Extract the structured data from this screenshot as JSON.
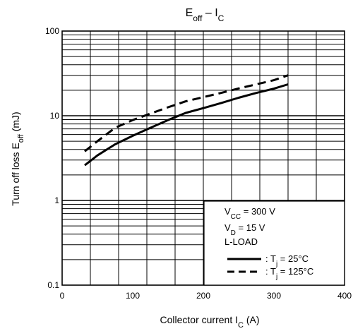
{
  "chart_data": {
    "type": "line",
    "title": {
      "main": "E",
      "sub": "off",
      "rest": " – I",
      "sub2": "C"
    },
    "xlabel": {
      "main": "Collector current   I",
      "sub": "C",
      "unit": "   (A)"
    },
    "ylabel": {
      "main": "Turn off loss   E",
      "sub": "off",
      "unit": "   (mJ)"
    },
    "xlim": [
      0,
      400
    ],
    "ylim": [
      0.1,
      100
    ],
    "yscale": "log",
    "grid": true,
    "xticks": [
      {
        "value": 0,
        "label": "0"
      },
      {
        "value": 100,
        "label": "100"
      },
      {
        "value": 200,
        "label": "200"
      },
      {
        "value": 300,
        "label": "300"
      },
      {
        "value": 400,
        "label": "400"
      }
    ],
    "yticks": [
      {
        "value": 0.1,
        "label": "0.1"
      },
      {
        "value": 1,
        "label": "1"
      },
      {
        "value": 10,
        "label": "10"
      },
      {
        "value": 100,
        "label": "100"
      }
    ],
    "series": [
      {
        "name": ": Tj = 25°C",
        "style": "solid",
        "color": "#000000",
        "x": [
          32,
          50,
          75,
          100,
          125,
          150,
          175,
          200,
          225,
          250,
          275,
          300,
          320
        ],
        "y": [
          2.6,
          3.4,
          4.6,
          5.8,
          7.2,
          8.9,
          10.8,
          12.3,
          14.1,
          16.3,
          18.6,
          20.9,
          23.5
        ]
      },
      {
        "name": ": Tj = 125°C",
        "style": "dashed",
        "color": "#000000",
        "x": [
          32,
          50,
          75,
          100,
          125,
          150,
          175,
          200,
          225,
          250,
          275,
          300,
          320
        ],
        "y": [
          3.8,
          5.0,
          7.2,
          8.9,
          10.6,
          12.6,
          14.8,
          16.6,
          18.6,
          21.0,
          23.5,
          26.3,
          30.0
        ]
      }
    ],
    "legend": {
      "position": "bottom-right",
      "conditions": [
        {
          "main": "V",
          "sub": "CC",
          "rest": " = 300 V"
        },
        {
          "main": "V",
          "sub": "D",
          "rest": " = 15 V"
        },
        {
          "main": "L-LOAD",
          "sub": "",
          "rest": ""
        }
      ],
      "entries": [
        {
          "pre": ": T",
          "sub": "j",
          "post": " = 25°C",
          "style": "solid"
        },
        {
          "pre": ": T",
          "sub": "j",
          "post": " = 125°C",
          "style": "dashed"
        }
      ]
    }
  }
}
